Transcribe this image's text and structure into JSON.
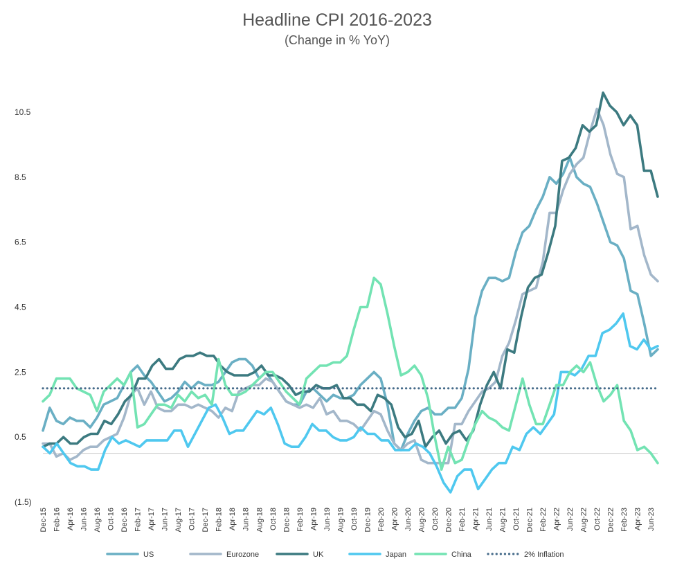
{
  "chart_data": {
    "type": "line",
    "title": "Headline CPI 2016-2023",
    "subtitle": "(Change in % YoY)",
    "xlabel": "",
    "ylabel": "",
    "yticks": [
      {
        "value": 10.5,
        "label": "10.5"
      },
      {
        "value": 8.5,
        "label": "8.5"
      },
      {
        "value": 6.5,
        "label": "6.5"
      },
      {
        "value": 4.5,
        "label": "4.5"
      },
      {
        "value": 2.5,
        "label": "2.5"
      },
      {
        "value": 0.5,
        "label": "0.5"
      },
      {
        "value": -1.5,
        "label": "(1.5)"
      }
    ],
    "ylim": [
      -1.5,
      11.5
    ],
    "x_start": "Dec-15",
    "x_end": "Jul-23",
    "x_tick_labels": [
      "Dec-15",
      "Feb-16",
      "Apr-16",
      "Jun-16",
      "Aug-16",
      "Oct-16",
      "Dec-16",
      "Feb-17",
      "Apr-17",
      "Jun-17",
      "Aug-17",
      "Oct-17",
      "Dec-17",
      "Feb-18",
      "Apr-18",
      "Jun-18",
      "Aug-18",
      "Oct-18",
      "Dec-18",
      "Feb-19",
      "Apr-19",
      "Jun-19",
      "Aug-19",
      "Oct-19",
      "Dec-19",
      "Feb-20",
      "Apr-20",
      "Jun-20",
      "Aug-20",
      "Oct-20",
      "Dec-20",
      "Feb-21",
      "Apr-21",
      "Jun-21",
      "Aug-21",
      "Oct-21",
      "Dec-21",
      "Feb-22",
      "Apr-22",
      "Jun-22",
      "Aug-22",
      "Oct-22",
      "Dec-22",
      "Feb-23",
      "Apr-23",
      "Jun-23"
    ],
    "grid": false,
    "legend_position": "bottom",
    "series": [
      {
        "name": "US",
        "color": "#6aafc4",
        "style": "solid",
        "values": [
          0.7,
          1.4,
          1.0,
          0.9,
          1.1,
          1.0,
          1.0,
          0.8,
          1.1,
          1.5,
          1.6,
          1.7,
          2.1,
          2.5,
          2.7,
          2.4,
          2.2,
          1.9,
          1.6,
          1.7,
          1.9,
          2.2,
          2.0,
          2.2,
          2.1,
          2.1,
          2.2,
          2.5,
          2.8,
          2.9,
          2.9,
          2.7,
          2.3,
          2.5,
          2.2,
          1.9,
          1.6,
          1.5,
          1.5,
          1.9,
          2.0,
          1.8,
          1.6,
          1.8,
          1.7,
          1.7,
          1.8,
          2.1,
          2.3,
          2.5,
          2.3,
          1.5,
          0.3,
          0.1,
          0.6,
          1.0,
          1.3,
          1.4,
          1.2,
          1.2,
          1.4,
          1.4,
          1.7,
          2.6,
          4.2,
          5.0,
          5.4,
          5.4,
          5.3,
          5.4,
          6.2,
          6.8,
          7.0,
          7.5,
          7.9,
          8.5,
          8.3,
          8.6,
          9.1,
          8.5,
          8.3,
          8.2,
          7.7,
          7.1,
          6.5,
          6.4,
          6.0,
          5.0,
          4.9,
          4.0,
          3.0,
          3.2
        ]
      },
      {
        "name": "Eurozone",
        "color": "#a3b7ca",
        "style": "solid",
        "values": [
          0.3,
          0.3,
          -0.1,
          0.0,
          -0.2,
          -0.1,
          0.1,
          0.2,
          0.2,
          0.4,
          0.5,
          0.6,
          1.1,
          1.8,
          2.0,
          1.5,
          1.9,
          1.4,
          1.3,
          1.3,
          1.5,
          1.5,
          1.4,
          1.5,
          1.4,
          1.3,
          1.1,
          1.4,
          1.3,
          1.9,
          2.0,
          2.1,
          2.1,
          2.3,
          2.2,
          1.9,
          1.6,
          1.5,
          1.4,
          1.5,
          1.4,
          1.7,
          1.2,
          1.3,
          1.0,
          1.0,
          0.9,
          0.7,
          1.0,
          1.3,
          1.2,
          0.7,
          0.3,
          0.1,
          0.3,
          0.4,
          -0.2,
          -0.3,
          -0.3,
          -0.3,
          -0.3,
          0.9,
          0.9,
          1.3,
          1.6,
          1.9,
          2.0,
          2.2,
          3.0,
          3.4,
          4.1,
          4.9,
          5.0,
          5.1,
          5.9,
          7.4,
          7.4,
          8.1,
          8.6,
          8.9,
          9.1,
          9.9,
          10.6,
          10.1,
          9.2,
          8.6,
          8.5,
          6.9,
          7.0,
          6.1,
          5.5,
          5.3
        ]
      },
      {
        "name": "UK",
        "color": "#3c7a80",
        "style": "solid",
        "values": [
          0.2,
          0.3,
          0.3,
          0.5,
          0.3,
          0.3,
          0.5,
          0.6,
          0.6,
          1.0,
          0.9,
          1.2,
          1.6,
          1.8,
          2.3,
          2.3,
          2.7,
          2.9,
          2.6,
          2.6,
          2.9,
          3.0,
          3.0,
          3.1,
          3.0,
          3.0,
          2.7,
          2.5,
          2.4,
          2.4,
          2.4,
          2.5,
          2.7,
          2.4,
          2.4,
          2.3,
          2.1,
          1.8,
          1.9,
          1.9,
          2.1,
          2.0,
          2.0,
          2.1,
          1.7,
          1.7,
          1.5,
          1.5,
          1.3,
          1.8,
          1.7,
          1.5,
          0.8,
          0.5,
          0.6,
          1.0,
          0.2,
          0.5,
          0.7,
          0.3,
          0.6,
          0.7,
          0.4,
          0.7,
          1.5,
          2.1,
          2.5,
          2.0,
          3.2,
          3.1,
          4.2,
          5.1,
          5.4,
          5.5,
          6.2,
          7.0,
          9.0,
          9.1,
          9.4,
          10.1,
          9.9,
          10.1,
          11.1,
          10.7,
          10.5,
          10.1,
          10.4,
          10.1,
          8.7,
          8.7,
          7.9
        ]
      },
      {
        "name": "Japan",
        "color": "#4fc8ef",
        "style": "solid",
        "values": [
          0.2,
          0.0,
          0.3,
          0.0,
          -0.3,
          -0.4,
          -0.4,
          -0.5,
          -0.5,
          0.1,
          0.5,
          0.3,
          0.4,
          0.3,
          0.2,
          0.4,
          0.4,
          0.4,
          0.4,
          0.7,
          0.7,
          0.2,
          0.6,
          1.0,
          1.4,
          1.5,
          1.1,
          0.6,
          0.7,
          0.7,
          1.0,
          1.3,
          1.2,
          1.4,
          0.9,
          0.3,
          0.2,
          0.2,
          0.5,
          0.9,
          0.7,
          0.7,
          0.5,
          0.4,
          0.4,
          0.5,
          0.8,
          0.6,
          0.6,
          0.4,
          0.4,
          0.1,
          0.1,
          0.1,
          0.3,
          0.2,
          0.0,
          -0.4,
          -0.9,
          -1.2,
          -0.7,
          -0.5,
          -0.5,
          -1.1,
          -0.8,
          -0.5,
          -0.3,
          -0.3,
          0.2,
          0.1,
          0.6,
          0.8,
          0.6,
          0.9,
          1.2,
          2.5,
          2.5,
          2.4,
          2.6,
          3.0,
          3.0,
          3.7,
          3.8,
          4.0,
          4.3,
          3.3,
          3.2,
          3.5,
          3.2,
          3.3
        ]
      },
      {
        "name": "China",
        "color": "#73e3b3",
        "style": "solid",
        "values": [
          1.6,
          1.8,
          2.3,
          2.3,
          2.3,
          2.0,
          1.9,
          1.8,
          1.3,
          1.9,
          2.1,
          2.3,
          2.1,
          2.5,
          0.8,
          0.9,
          1.2,
          1.5,
          1.5,
          1.4,
          1.8,
          1.6,
          1.9,
          1.7,
          1.8,
          1.5,
          2.9,
          2.1,
          1.8,
          1.8,
          1.9,
          2.1,
          2.3,
          2.5,
          2.5,
          2.2,
          1.9,
          1.7,
          1.5,
          2.3,
          2.5,
          2.7,
          2.7,
          2.8,
          2.8,
          3.0,
          3.8,
          4.5,
          4.5,
          5.4,
          5.2,
          4.3,
          3.3,
          2.4,
          2.5,
          2.7,
          2.4,
          1.7,
          0.5,
          -0.5,
          0.2,
          -0.3,
          -0.2,
          0.4,
          0.9,
          1.3,
          1.1,
          1.0,
          0.8,
          0.7,
          1.5,
          2.3,
          1.5,
          0.9,
          0.9,
          1.5,
          2.1,
          2.1,
          2.5,
          2.7,
          2.5,
          2.8,
          2.1,
          1.6,
          1.8,
          2.1,
          1.0,
          0.7,
          0.1,
          0.2,
          0.0,
          -0.3
        ]
      },
      {
        "name": "2% Inflation",
        "color": "#466b8a",
        "style": "dotted",
        "values": [
          2,
          2,
          2,
          2,
          2,
          2,
          2,
          2,
          2,
          2,
          2,
          2,
          2,
          2,
          2,
          2,
          2,
          2,
          2,
          2,
          2,
          2,
          2,
          2,
          2,
          2,
          2,
          2,
          2,
          2,
          2,
          2,
          2,
          2,
          2,
          2,
          2,
          2,
          2,
          2,
          2,
          2,
          2,
          2,
          2,
          2,
          2,
          2,
          2,
          2,
          2,
          2,
          2,
          2,
          2,
          2,
          2,
          2,
          2,
          2,
          2,
          2,
          2,
          2,
          2,
          2,
          2,
          2,
          2,
          2,
          2,
          2,
          2,
          2,
          2,
          2,
          2,
          2,
          2,
          2,
          2,
          2,
          2,
          2,
          2,
          2,
          2,
          2,
          2,
          2,
          2,
          2,
          2
        ]
      }
    ]
  }
}
